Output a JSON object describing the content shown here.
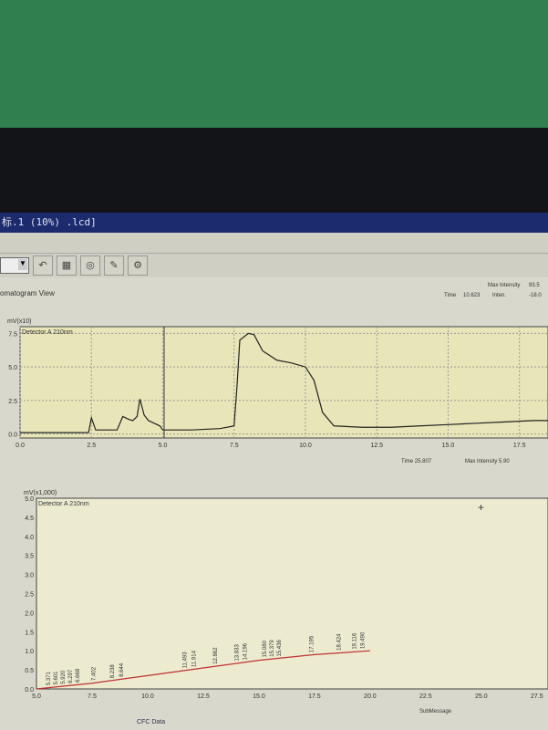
{
  "window": {
    "title": "标.1 (10%) .lcd]"
  },
  "toolbar": {
    "icons": [
      "undo-icon",
      "data-icon",
      "camera-icon",
      "edit-icon",
      "settings-icon"
    ],
    "glyphs": [
      "↶",
      "▦",
      "◎",
      "✎",
      "⚙"
    ]
  },
  "view": {
    "title": "omatogram View"
  },
  "upper_info": {
    "max_intensity_label": "Max Intensity",
    "max_intensity_value": "93.5",
    "time_label": "Time",
    "time_value": "10.623",
    "inten_label": "Inten.",
    "inten_value": "-18.0"
  },
  "lower_info": {
    "max_intensity_label": "Max Intensity",
    "max_intensity_value": "5.90",
    "time_label": "Time",
    "time_value": "25.807"
  },
  "status": {
    "submessage": "SubMessage",
    "tab": "CFC Data"
  },
  "chart_data": [
    {
      "type": "line",
      "ylabel": "mV(x10)",
      "legend": "Detector A 210nm",
      "xlim": [
        0,
        18.5
      ],
      "ylim": [
        -0.3,
        8
      ],
      "xticks": [
        0.0,
        2.5,
        5.0,
        7.5,
        10.0,
        12.5,
        15.0,
        17.5
      ],
      "yticks": [
        "0.0",
        "2.5",
        "5.0",
        "7.5"
      ],
      "grid": true,
      "x": [
        0,
        2,
        2.4,
        2.5,
        2.65,
        3,
        3.4,
        3.6,
        3.8,
        3.95,
        4.1,
        4.2,
        4.35,
        4.5,
        4.9,
        5,
        6,
        7,
        7.5,
        7.6,
        7.7,
        8,
        8.2,
        8.5,
        9,
        9.5,
        10,
        10.3,
        10.6,
        11,
        12,
        13,
        14,
        15,
        16,
        17,
        18,
        18.5
      ],
      "y": [
        0.1,
        0.1,
        0.1,
        1.2,
        0.3,
        0.3,
        0.3,
        1.3,
        1.1,
        1.0,
        1.3,
        2.6,
        1.4,
        1.0,
        0.6,
        0.3,
        0.3,
        0.4,
        0.6,
        3.5,
        7.0,
        7.5,
        7.4,
        6.2,
        5.5,
        5.3,
        5.0,
        4.0,
        1.6,
        0.6,
        0.5,
        0.5,
        0.6,
        0.7,
        0.8,
        0.9,
        1.0,
        1.0
      ]
    },
    {
      "type": "line",
      "ylabel": "mV(x1,000)",
      "legend": "Detector A 210nm",
      "xlim": [
        5,
        28
      ],
      "ylim": [
        0,
        5
      ],
      "xticks": [
        "5.0",
        "7.5",
        "10.0",
        "12.5",
        "15.0",
        "17.5",
        "20.0",
        "22.5",
        "25.0",
        "27.5"
      ],
      "yticks": [
        "0.0",
        "0.5",
        "1.0",
        "1.5",
        "2.0",
        "2.5",
        "3.0",
        "3.5",
        "4.0",
        "4.5",
        "5.0"
      ],
      "grid": false,
      "x": [
        5,
        7.5,
        10,
        12.5,
        15,
        17.5,
        20
      ],
      "y": [
        0.0,
        0.15,
        0.35,
        0.55,
        0.75,
        0.9,
        1.0
      ],
      "peaks": [
        "5.371",
        "5.601",
        "5.920",
        "6.297",
        "6.668",
        "7.402",
        "8.238",
        "8.644",
        "11.493",
        "11.914",
        "12.862",
        "13.833",
        "14.196",
        "15.080",
        "15.379",
        "15.436",
        "17.195",
        "18.424",
        "19.116",
        "19.490"
      ]
    }
  ]
}
